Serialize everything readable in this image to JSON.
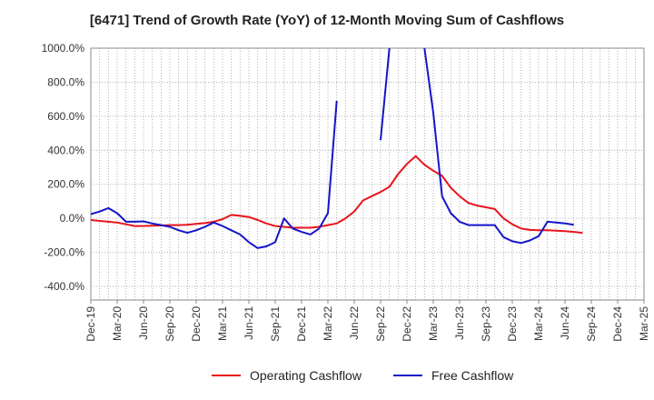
{
  "chart_data": {
    "type": "line",
    "title": "[6471]  Trend of Growth Rate (YoY) of 12-Month Moving Sum of Cashflows",
    "xlabel": "",
    "ylabel": "",
    "ylim": [
      -480,
      1000
    ],
    "yticks": [
      1000,
      800,
      600,
      400,
      200,
      0,
      -200,
      -400
    ],
    "ytick_labels": [
      "1000.0%",
      "800.0%",
      "600.0%",
      "400.0%",
      "200.0%",
      "0.0%",
      "-200.0%",
      "-400.0%"
    ],
    "x_start": "Dec-19",
    "x_count": 64,
    "xtick_labels": [
      "Dec-19",
      "Mar-20",
      "Jun-20",
      "Sep-20",
      "Dec-20",
      "Mar-21",
      "Jun-21",
      "Sep-21",
      "Dec-21",
      "Mar-22",
      "Jun-22",
      "Sep-22",
      "Dec-22",
      "Mar-23",
      "Jun-23",
      "Sep-23",
      "Dec-23",
      "Mar-24",
      "Jun-24",
      "Sep-24",
      "Dec-24",
      "Mar-25"
    ],
    "grid": true,
    "legend_position": "bottom",
    "series": [
      {
        "name": "Operating Cashflow",
        "color": "#e8141b",
        "values": [
          -10,
          -15,
          -20,
          -25,
          -35,
          -45,
          -45,
          -43,
          -42,
          -40,
          -40,
          -38,
          -33,
          -28,
          -20,
          -5,
          20,
          15,
          8,
          -10,
          -30,
          -45,
          -50,
          -55,
          -55,
          -55,
          -50,
          -40,
          -30,
          0,
          40,
          105,
          130,
          155,
          185,
          260,
          320,
          365,
          315,
          280,
          250,
          180,
          130,
          90,
          75,
          65,
          55,
          0,
          -35,
          -60,
          -68,
          -70,
          -70,
          -73,
          -75,
          -80,
          -85,
          null,
          null,
          null,
          null,
          null,
          null,
          null
        ]
      },
      {
        "name": "Free Cashflow",
        "color": "#1515c8",
        "values": [
          25,
          40,
          60,
          30,
          -20,
          -20,
          -18,
          -30,
          -40,
          -50,
          -70,
          -85,
          -70,
          -50,
          -25,
          -45,
          -70,
          -95,
          -140,
          -175,
          -165,
          -140,
          0,
          -60,
          -80,
          -95,
          -60,
          30,
          690,
          null,
          null,
          null,
          null,
          460,
          1000,
          null,
          null,
          null,
          1000,
          620,
          130,
          30,
          -20,
          -40,
          -40,
          -40,
          -40,
          -110,
          -135,
          -145,
          -130,
          -105,
          -20,
          -25,
          -30,
          -38,
          null,
          null,
          null,
          null,
          null,
          null,
          null,
          null
        ]
      }
    ]
  }
}
